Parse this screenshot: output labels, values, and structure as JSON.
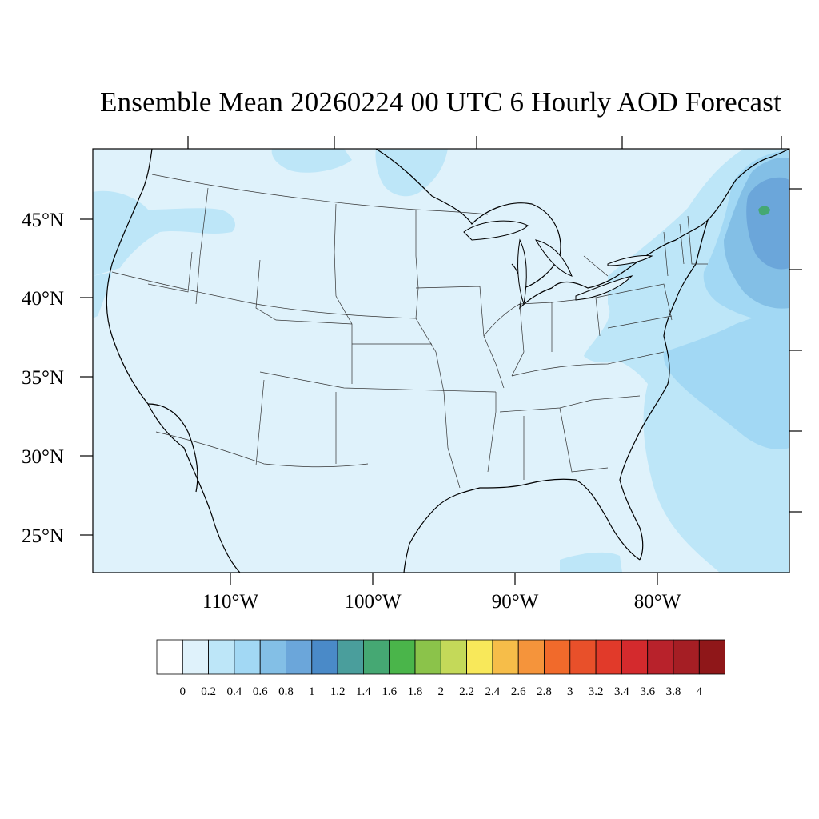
{
  "title": "Ensemble Mean 20260224 00 UTC 6 Hourly AOD Forecast",
  "map": {
    "projection": "lambert-conformal",
    "region": "Contiguous United States",
    "background_fill": "#dff2fb",
    "lat_labels": [
      "45°N",
      "40°N",
      "35°N",
      "30°N",
      "25°N"
    ],
    "lon_labels": [
      "110°W",
      "100°W",
      "90°W",
      "80°W"
    ],
    "field_regions": [
      {
        "name": "pacific-northwest-coast",
        "level": "0.2-0.4",
        "color": "#bde6f8"
      },
      {
        "name": "great-lakes-northeast",
        "level": "0.2-0.4",
        "color": "#bde6f8"
      },
      {
        "name": "atlantic-offshore",
        "level": "0.4-0.6",
        "color": "#a2d8f4"
      },
      {
        "name": "gulf-of-maine-maritimes",
        "level": "0.8-1.0",
        "color": "#6ba6da"
      },
      {
        "name": "nova-scotia-core",
        "level": "1.4-1.6",
        "color": "#45a873"
      }
    ]
  },
  "colorbar": {
    "labels": [
      "0",
      "0.2",
      "0.4",
      "0.6",
      "0.8",
      "1",
      "1.2",
      "1.4",
      "1.6",
      "1.8",
      "2",
      "2.2",
      "2.4",
      "2.6",
      "2.8",
      "3",
      "3.2",
      "3.4",
      "3.6",
      "3.8",
      "4"
    ],
    "colors": [
      "#ffffff",
      "#dff2fb",
      "#bde6f8",
      "#a2d8f4",
      "#83bfe6",
      "#6ba6da",
      "#4a8ac8",
      "#4a9e9c",
      "#45a873",
      "#4ab54a",
      "#8bc34a",
      "#c4d959",
      "#f8e85a",
      "#f6bd49",
      "#f5943b",
      "#f16a2b",
      "#e8502a",
      "#e13a2a",
      "#d42a2d",
      "#b8222b",
      "#a51e24",
      "#8f1719"
    ]
  }
}
